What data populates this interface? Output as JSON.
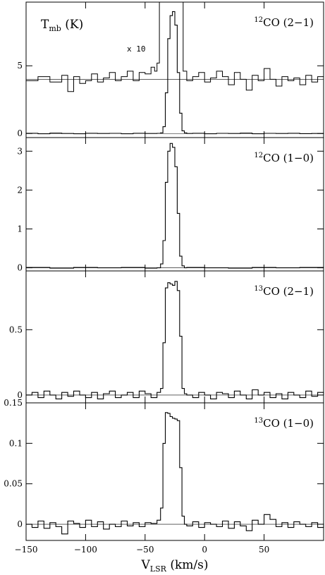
{
  "chart_data": {
    "type": "line",
    "x_axis": {
      "label_main": "V",
      "label_sub": "LSR",
      "label_tail": " (km/s)",
      "range": [
        -150,
        100
      ],
      "ticks": [
        -150,
        -100,
        -50,
        0,
        50
      ],
      "tick_labels": [
        "−150",
        "−100",
        "−50",
        "0",
        "50"
      ]
    },
    "y_label": {
      "main": "T",
      "sub": "mb",
      "tail": " (K)"
    },
    "panels": [
      {
        "line_label_iso": "12",
        "line_label_text": "CO (2−1)",
        "ylim": [
          -0.3,
          9.7
        ],
        "yticks": [
          0,
          5
        ],
        "ytick_labels": [
          "0",
          "5"
        ],
        "annotation": "x 10",
        "spectrum": {
          "x": [
            -150,
            -140,
            -130,
            -120,
            -110,
            -100,
            -90,
            -80,
            -70,
            -60,
            -50,
            -40,
            -37,
            -35,
            -33,
            -31,
            -29,
            -27,
            -25,
            -23,
            -21,
            -19,
            -17,
            -15,
            -10,
            0,
            10,
            20,
            30,
            40,
            50,
            60,
            70,
            80,
            90,
            100
          ],
          "y": [
            0.02,
            -0.02,
            0.03,
            0.0,
            -0.02,
            0.02,
            0.0,
            0.01,
            -0.02,
            0.02,
            0.0,
            0.01,
            0.05,
            0.5,
            3.0,
            7.0,
            8.7,
            9.0,
            8.0,
            4.5,
            1.5,
            0.2,
            0.05,
            0.0,
            0.02,
            -0.02,
            0.01,
            0.0,
            0.03,
            -0.02,
            0.01,
            0.0,
            0.02,
            -0.01,
            0.0,
            0.01
          ]
        },
        "spectrum_x10": {
          "x": [
            -150,
            -140,
            -130,
            -120,
            -115,
            -110,
            -105,
            -100,
            -95,
            -90,
            -85,
            -80,
            -75,
            -70,
            -65,
            -60,
            -55,
            -50,
            -45,
            -42,
            -40,
            -38,
            -36,
            -34,
            -32,
            -20,
            -18,
            -15,
            -10,
            -5,
            0,
            5,
            10,
            15,
            20,
            25,
            30,
            35,
            40,
            45,
            50,
            55,
            60,
            65,
            70,
            75,
            80,
            85,
            90,
            95,
            100
          ],
          "y": [
            3.9,
            4.2,
            3.8,
            4.3,
            3.1,
            4.2,
            3.7,
            3.9,
            4.4,
            3.8,
            4.1,
            4.5,
            3.9,
            4.2,
            4.6,
            3.9,
            4.5,
            4.4,
            4.9,
            4.6,
            5.2,
            9.7,
            9.7,
            9.7,
            9.7,
            9.7,
            4.6,
            3.9,
            4.2,
            4.5,
            3.8,
            4.1,
            4.6,
            4.2,
            3.6,
            4.5,
            4.0,
            3.2,
            4.3,
            3.9,
            4.8,
            4.0,
            3.5,
            4.2,
            3.9,
            4.1,
            3.6,
            4.3,
            3.8,
            4.2,
            4.0
          ]
        },
        "baseline_x10": 4.0
      },
      {
        "line_label_iso": "12",
        "line_label_text": "CO (1−0)",
        "ylim": [
          -0.08,
          3.35
        ],
        "yticks": [
          0,
          1,
          2,
          3
        ],
        "ytick_labels": [
          "0",
          "1",
          "2",
          "3"
        ],
        "spectrum": {
          "x": [
            -150,
            -130,
            -110,
            -90,
            -70,
            -50,
            -40,
            -37,
            -35,
            -33,
            -31,
            -29,
            -27,
            -25,
            -23,
            -21,
            -19,
            -17,
            -15,
            0,
            20,
            40,
            60,
            80,
            100
          ],
          "y": [
            0.01,
            -0.01,
            0.01,
            0.0,
            0.01,
            -0.01,
            0.0,
            0.1,
            0.7,
            2.2,
            3.0,
            3.2,
            3.1,
            2.6,
            1.4,
            0.3,
            0.05,
            0.0,
            0.01,
            0.0,
            -0.01,
            0.01,
            0.0,
            0.01,
            0.0
          ]
        }
      },
      {
        "line_label_iso": "13",
        "line_label_text": "CO (2−1)",
        "ylim": [
          -0.06,
          0.95
        ],
        "yticks": [
          0,
          0.5
        ],
        "ytick_labels": [
          "0",
          "0.5"
        ],
        "spectrum": {
          "x": [
            -150,
            -145,
            -140,
            -135,
            -130,
            -125,
            -120,
            -115,
            -110,
            -105,
            -100,
            -95,
            -90,
            -85,
            -80,
            -75,
            -70,
            -65,
            -60,
            -55,
            -50,
            -45,
            -40,
            -37,
            -35,
            -33,
            -31,
            -29,
            -27,
            -25,
            -23,
            -21,
            -19,
            -17,
            -15,
            -10,
            -5,
            0,
            5,
            10,
            15,
            20,
            25,
            30,
            35,
            40,
            45,
            50,
            55,
            60,
            65,
            70,
            75,
            80,
            85,
            90,
            95,
            100
          ],
          "y": [
            0.0,
            0.02,
            -0.02,
            0.03,
            0.0,
            -0.03,
            0.02,
            -0.01,
            0.03,
            0.0,
            -0.02,
            0.02,
            -0.03,
            0.01,
            0.03,
            -0.02,
            0.0,
            0.02,
            -0.02,
            0.03,
            0.01,
            -0.02,
            0.02,
            0.05,
            0.4,
            0.82,
            0.86,
            0.85,
            0.84,
            0.87,
            0.8,
            0.45,
            0.05,
            0.01,
            0.0,
            -0.02,
            0.02,
            0.0,
            -0.03,
            0.02,
            0.01,
            -0.02,
            0.03,
            0.0,
            -0.03,
            0.04,
            0.0,
            0.02,
            -0.02,
            0.01,
            -0.03,
            0.02,
            0.0,
            -0.02,
            0.03,
            -0.01,
            0.02,
            0.0
          ]
        }
      },
      {
        "line_label_iso": "13",
        "line_label_text": "CO (1−0)",
        "ylim": [
          -0.02,
          0.15
        ],
        "yticks": [
          0,
          0.05,
          0.1,
          0.15
        ],
        "ytick_labels": [
          "0",
          "0.05",
          "0.1",
          "0.15"
        ],
        "spectrum": {
          "x": [
            -150,
            -145,
            -140,
            -135,
            -130,
            -125,
            -120,
            -115,
            -110,
            -105,
            -100,
            -95,
            -90,
            -85,
            -80,
            -75,
            -70,
            -65,
            -60,
            -55,
            -50,
            -45,
            -40,
            -37,
            -35,
            -33,
            -31,
            -29,
            -27,
            -25,
            -23,
            -21,
            -19,
            -17,
            -15,
            -10,
            -5,
            0,
            5,
            10,
            15,
            20,
            25,
            30,
            35,
            40,
            45,
            50,
            55,
            60,
            65,
            70,
            75,
            80,
            85,
            90,
            95,
            100
          ],
          "y": [
            0.0,
            -0.004,
            0.004,
            -0.005,
            0.002,
            -0.003,
            -0.012,
            0.004,
            0.001,
            -0.004,
            0.005,
            -0.003,
            0.003,
            -0.006,
            0.0,
            -0.003,
            0.004,
            -0.002,
            0.002,
            -0.003,
            0.002,
            0.001,
            0.005,
            0.02,
            0.1,
            0.138,
            0.137,
            0.133,
            0.131,
            0.13,
            0.128,
            0.07,
            0.01,
            0.0,
            -0.002,
            0.003,
            -0.004,
            0.002,
            0.0,
            -0.003,
            0.004,
            -0.005,
            0.003,
            -0.002,
            -0.008,
            0.005,
            0.0,
            0.012,
            0.006,
            -0.003,
            0.002,
            -0.004,
            0.003,
            0.0,
            -0.003,
            0.002,
            -0.004,
            0.001
          ]
        }
      }
    ]
  }
}
